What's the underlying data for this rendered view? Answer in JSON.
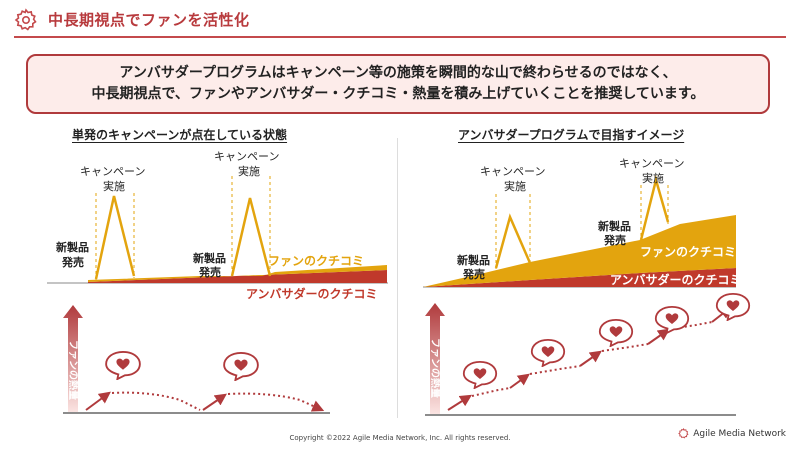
{
  "page": {
    "title": "中長期視点でファンを活性化",
    "summary_line1": "アンバサダープログラムはキャンペーン等の施策を瞬間的な山で終わらせるのではなく、",
    "summary_line2": "中長期視点で、ファンやアンバサダー・クチコミ・熱量を積み上げていくことを推奨しています。"
  },
  "left_panel": {
    "heading": "単発のキャンペーンが点在している状態",
    "campaign1_line1": "キャンペーン",
    "campaign1_line2": "実施",
    "campaign2_line1": "キャンペーン",
    "campaign2_line2": "実施",
    "product1_line1": "新製品",
    "product1_line2": "発売",
    "product2_line1": "新製品",
    "product2_line2": "発売",
    "fan_wom_label": "ファンのクチコミ",
    "ambassador_wom_label": "アンバサダーのクチコミ",
    "heat_axis_label": "ファンの熱量"
  },
  "right_panel": {
    "heading": "アンバサダープログラムで目指すイメージ",
    "campaign1_line1": "キャンペーン",
    "campaign1_line2": "実施",
    "campaign2_line1": "キャンペーン",
    "campaign2_line2": "実施",
    "product1_line1": "新製品",
    "product1_line2": "発売",
    "product2_line1": "新製品",
    "product2_line2": "発売",
    "fan_wom_label": "ファンのクチコミ",
    "ambassador_wom_label": "アンバサダーのクチコミ",
    "heat_axis_label": "ファンの熱量"
  },
  "colors": {
    "accent_red": "#c0392b",
    "campaign_gold": "#e3a40e",
    "pink_bg": "#fdecea"
  },
  "icons": {
    "header": "flower-badge-icon",
    "speech": "heart-speech-bubble-icon"
  },
  "footer": {
    "copyright": "Copyright ©2022 Agile Media Network, Inc. All rights reserved.",
    "brand": "Agile Media Network"
  }
}
